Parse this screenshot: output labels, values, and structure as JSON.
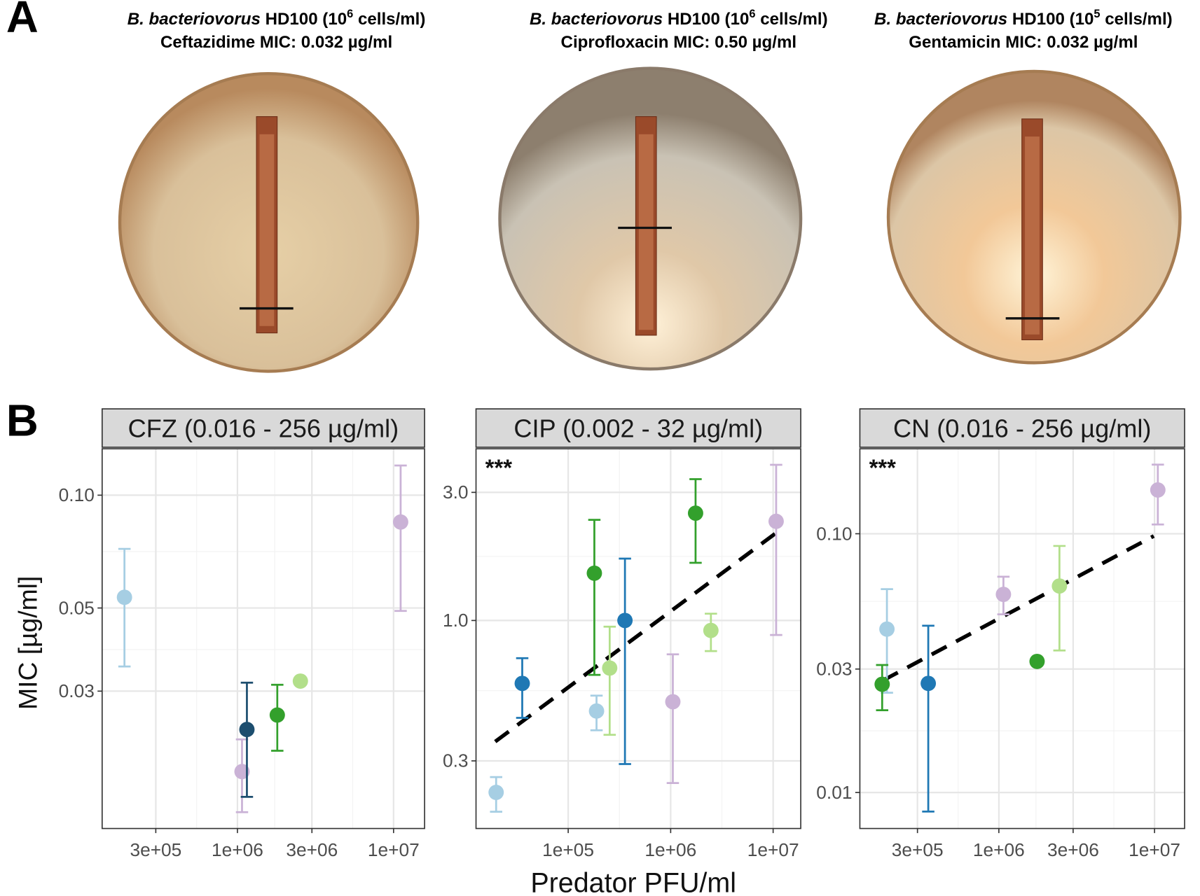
{
  "panel_labels": [
    "A",
    "B"
  ],
  "plates": [
    {
      "organism": "B. bacteriovorus",
      "strain": " HD100 (10",
      "exponent": "6",
      "unit": " cells/ml)",
      "antibiotic": "Ceftazidime MIC: 0.032 µg/ml"
    },
    {
      "organism": "B. bacteriovorus",
      "strain": " HD100 (10",
      "exponent": "6",
      "unit": " cells/ml)",
      "antibiotic": "Ciprofloxacin MIC: 0.50 µg/ml"
    },
    {
      "organism": "B. bacteriovorus",
      "strain": " HD100 (10",
      "exponent": "5",
      "unit": " cells/ml)",
      "antibiotic": "Gentamicin MIC: 0.032 µg/ml"
    }
  ],
  "ylabel": "MIC [µg/ml]",
  "xlabel": "Predator PFU/ml",
  "chart_data": [
    {
      "type": "scatter",
      "title": "CFZ (0.016 - 256 µg/ml)",
      "xscale": "log",
      "yscale": "log",
      "grid": true,
      "xlim": [
        136000,
        15800000
      ],
      "ylim": [
        0.0129,
        0.133
      ],
      "xticks": [
        {
          "value": 300000,
          "label": "3e+05"
        },
        {
          "value": 1000000,
          "label": "1e+06"
        },
        {
          "value": 3000000,
          "label": "3e+06"
        },
        {
          "value": 10000000,
          "label": "1e+07"
        }
      ],
      "yticks": [
        0.03,
        0.05,
        {
          "value": 0.1,
          "label": "0.10"
        }
      ],
      "x": [
        189000,
        1070000,
        1150000,
        1800000,
        2530000,
        11100000
      ],
      "values": [
        0.0534,
        0.0183,
        0.0237,
        0.0259,
        0.0319,
        0.0848
      ],
      "ci_low": [
        0.0349,
        0.01426,
        0.01567,
        0.0208,
        null,
        0.0491
      ],
      "ci_high": [
        0.0719,
        0.0223,
        0.0316,
        0.0312,
        null,
        0.12
      ],
      "colors": [
        "#a6cee3",
        "#cab2d6",
        "#1d4e6f",
        "#33a02c",
        "#b2df8a",
        "#cab2d6"
      ]
    },
    {
      "type": "scatter",
      "title": "CIP (0.002 - 32 µg/ml)",
      "xscale": "log",
      "yscale": "log",
      "grid": true,
      "xlim": [
        12600,
        18600000
      ],
      "ylim": [
        0.168,
        4.36
      ],
      "xticks": [
        {
          "value": 100000,
          "label": "1e+05"
        },
        {
          "value": 1000000,
          "label": "1e+06"
        },
        {
          "value": 10000000,
          "label": "1e+07"
        }
      ],
      "yticks": [
        0.3,
        {
          "value": 1,
          "label": "1.0"
        },
        {
          "value": 3,
          "label": "3.0"
        }
      ],
      "x": [
        19800,
        35600,
        180000,
        189000,
        254000,
        358000,
        1050000,
        1750000,
        2470000,
        10700000
      ],
      "values": [
        0.229,
        0.583,
        1.5,
        0.46,
        0.665,
        1.0,
        0.498,
        2.51,
        0.918,
        2.34
      ],
      "ci_low": [
        0.194,
        0.434,
        0.627,
        0.39,
        0.375,
        0.292,
        0.248,
        1.64,
        0.769,
        0.883
      ],
      "ci_high": [
        0.261,
        0.724,
        2.37,
        0.525,
        0.948,
        1.7,
        0.748,
        3.36,
        1.06,
        3.8
      ],
      "colors": [
        "#a6cee3",
        "#1f78b4",
        "#33a02c",
        "#a6cee3",
        "#b2df8a",
        "#1f78b4",
        "#cab2d6",
        "#33a02c",
        "#b2df8a",
        "#cab2d6"
      ],
      "trend_x": [
        19400,
        10900000
      ],
      "trend_y": [
        0.354,
        2.13
      ],
      "annotation": "***"
    },
    {
      "type": "scatter",
      "title": "CN (0.016 - 256 µg/ml)",
      "xscale": "log",
      "yscale": "log",
      "grid": true,
      "xlim": [
        128000,
        15600000
      ],
      "ylim": [
        0.00726,
        0.213
      ],
      "xticks": [
        {
          "value": 300000,
          "label": "3e+05"
        },
        {
          "value": 1000000,
          "label": "1e+06"
        },
        {
          "value": 3000000,
          "label": "3e+06"
        },
        {
          "value": 10000000,
          "label": "1e+07"
        }
      ],
      "yticks": [
        0.01,
        0.03,
        {
          "value": 0.1,
          "label": "0.10"
        }
      ],
      "x": [
        191000,
        178000,
        352000,
        1070000,
        1760000,
        2450000,
        10500000
      ],
      "values": [
        0.0428,
        0.0262,
        0.0264,
        0.0583,
        0.0321,
        0.0628,
        0.1476
      ],
      "ci_low": [
        0.0243,
        0.0208,
        0.00844,
        0.0488,
        null,
        0.0354,
        0.1086
      ],
      "ci_high": [
        0.0611,
        0.0311,
        0.0441,
        0.0682,
        null,
        0.0897,
        0.185
      ],
      "colors": [
        "#a6cee3",
        "#33a02c",
        "#1f78b4",
        "#cab2d6",
        "#33a02c",
        "#b2df8a",
        "#cab2d6"
      ],
      "trend_x": [
        180000,
        9890000
      ],
      "trend_y": [
        0.0271,
        0.098
      ],
      "annotation": "***"
    }
  ]
}
